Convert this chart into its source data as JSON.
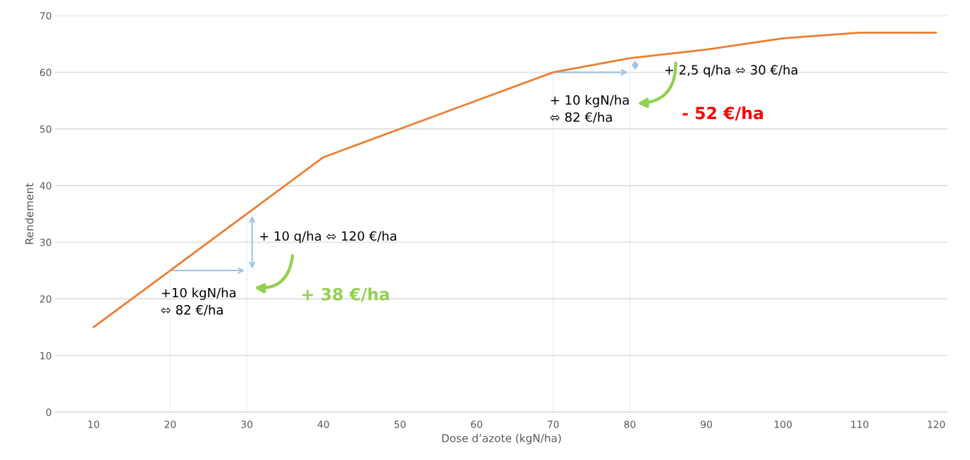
{
  "chart_data": {
    "type": "line",
    "xlabel": "Dose d’azote (kgN/ha)",
    "ylabel": "Rendement",
    "x": [
      10,
      20,
      30,
      40,
      50,
      60,
      70,
      80,
      90,
      100,
      110,
      120
    ],
    "series": [
      {
        "color": "#ed7d31",
        "values": [
          15,
          25,
          35,
          45,
          50,
          55,
          60,
          62.5,
          64,
          66,
          67,
          67
        ]
      }
    ],
    "xlim": [
      5,
      121.5
    ],
    "ylim": [
      0,
      70
    ],
    "xticks": [
      10,
      20,
      30,
      40,
      50,
      60,
      70,
      80,
      90,
      100,
      110,
      120
    ],
    "yticks": [
      0,
      10,
      20,
      30,
      40,
      50,
      60,
      70
    ],
    "grid": "y",
    "legend": false,
    "marker": "none",
    "line_style": "solid",
    "ref_lines": [
      {
        "axis": "x",
        "value": 20,
        "color": "#bdd7ee",
        "line_style": "dotted"
      },
      {
        "axis": "x",
        "value": 30,
        "color": "#bdd7ee",
        "line_style": "dotted"
      },
      {
        "axis": "x",
        "value": 70,
        "color": "#bdd7ee",
        "line_style": "dotted"
      },
      {
        "axis": "x",
        "value": 80,
        "color": "#bdd7ee",
        "line_style": "dotted"
      }
    ],
    "annotations": [
      "+ 10 q/ha ⬄ 120 €/ha",
      "+10 kgN/ha\n⬄ 82 €/ha",
      "+ 38 €/ha",
      "+ 10 kgN/ha\n⬄ 82 €/ha",
      "+ 2,5 q/ha ⬄ 30 €/ha",
      "- 52 €/ha"
    ]
  }
}
